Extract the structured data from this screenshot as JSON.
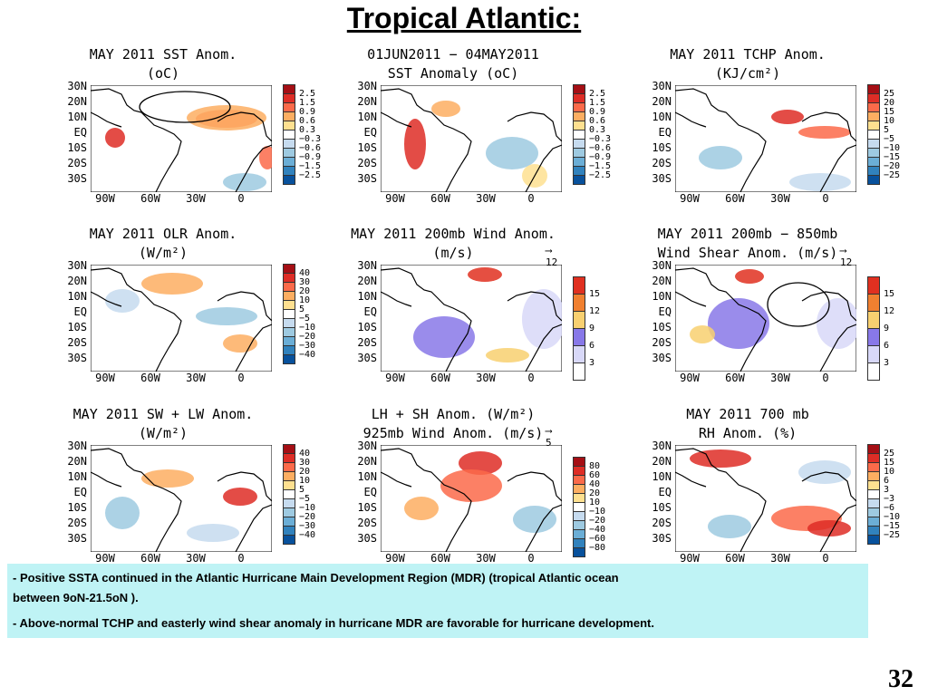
{
  "slide": {
    "title": "Tropical Atlantic:",
    "number": "32"
  },
  "axes": {
    "lat": [
      "30N",
      "20N",
      "10N",
      "EQ",
      "10S",
      "20S",
      "30S"
    ],
    "lon": [
      "90W",
      "60W",
      "30W",
      "0"
    ]
  },
  "panels": [
    {
      "title1": "MAY 2011 SST Anom.",
      "title2": "(oC)",
      "colorbar": [
        "2.5",
        "1.5",
        "0.9",
        "0.6",
        "0.3",
        "−0.3",
        "−0.6",
        "−0.9",
        "−1.5",
        "−2.5"
      ],
      "colors": [
        "#a50f15",
        "#de2d26",
        "#fb6a4a",
        "#fdae61",
        "#fee090",
        "#ffffff",
        "#c6dbef",
        "#9ecae1",
        "#6baed6",
        "#3182bd",
        "#08519c"
      ]
    },
    {
      "title1": "01JUN2011 − 04MAY2011",
      "title2": "SST Anomaly (oC)",
      "colorbar": [
        "2.5",
        "1.5",
        "0.9",
        "0.6",
        "0.3",
        "−0.3",
        "−0.6",
        "−0.9",
        "−1.5",
        "−2.5"
      ],
      "colors": [
        "#a50f15",
        "#de2d26",
        "#fb6a4a",
        "#fdae61",
        "#fee090",
        "#ffffff",
        "#c6dbef",
        "#9ecae1",
        "#6baed6",
        "#3182bd",
        "#08519c"
      ]
    },
    {
      "title1": "MAY 2011 TCHP Anom.",
      "title2": "(KJ/cm²)",
      "colorbar": [
        "25",
        "20",
        "15",
        "10",
        "5",
        "−5",
        "−10",
        "−15",
        "−20",
        "−25"
      ],
      "colors": [
        "#a50f15",
        "#de2d26",
        "#fb6a4a",
        "#fdae61",
        "#fee090",
        "#ffffff",
        "#c6dbef",
        "#9ecae1",
        "#6baed6",
        "#3182bd",
        "#08519c"
      ]
    },
    {
      "title1": "MAY 2011 OLR Anom.",
      "title2": "(W/m²)",
      "colorbar": [
        "40",
        "30",
        "20",
        "10",
        "5",
        "−5",
        "−10",
        "−20",
        "−30",
        "−40"
      ],
      "colors": [
        "#a50f15",
        "#de2d26",
        "#fb6a4a",
        "#fdae61",
        "#fee090",
        "#ffffff",
        "#c6dbef",
        "#9ecae1",
        "#6baed6",
        "#3182bd",
        "#08519c"
      ]
    },
    {
      "title1": "MAY 2011 200mb Wind Anom.",
      "title2": "(m/s)",
      "wind_key": "12",
      "colorbar": [
        "15",
        "12",
        "9",
        "6",
        "3"
      ],
      "colors": [
        "#e03020",
        "#f08030",
        "#f8d070",
        "#8878e8",
        "#d8d8f8",
        "#ffffff"
      ]
    },
    {
      "title1": "MAY 2011 200mb − 850mb",
      "title2": "Wind Shear Anom. (m/s)",
      "wind_key": "12",
      "colorbar": [
        "15",
        "12",
        "9",
        "6",
        "3"
      ],
      "colors": [
        "#e03020",
        "#f08030",
        "#f8d070",
        "#8878e8",
        "#d8d8f8",
        "#ffffff"
      ]
    },
    {
      "title1": "MAY 2011 SW + LW Anom.",
      "title2": "(W/m²)",
      "colorbar": [
        "40",
        "30",
        "20",
        "10",
        "5",
        "−5",
        "−10",
        "−20",
        "−30",
        "−40"
      ],
      "colors": [
        "#a50f15",
        "#de2d26",
        "#fb6a4a",
        "#fdae61",
        "#fee090",
        "#ffffff",
        "#c6dbef",
        "#9ecae1",
        "#6baed6",
        "#3182bd",
        "#08519c"
      ]
    },
    {
      "title1": "LH + SH Anom. (W/m²)",
      "title2": "925mb Wind Anom. (m/s)",
      "wind_key": "5",
      "colorbar": [
        "80",
        "60",
        "40",
        "20",
        "10",
        "−10",
        "−20",
        "−40",
        "−60",
        "−80"
      ],
      "colors": [
        "#a50f15",
        "#de2d26",
        "#fb6a4a",
        "#fdae61",
        "#fee090",
        "#ffffff",
        "#c6dbef",
        "#9ecae1",
        "#6baed6",
        "#3182bd",
        "#08519c"
      ]
    },
    {
      "title1": "MAY 2011 700 mb",
      "title2": "RH Anom. (%)",
      "colorbar": [
        "25",
        "15",
        "10",
        "6",
        "3",
        "−3",
        "−6",
        "−10",
        "−15",
        "−25"
      ],
      "colors": [
        "#a50f15",
        "#de2d26",
        "#fb6a4a",
        "#fdae61",
        "#fee090",
        "#ffffff",
        "#c6dbef",
        "#9ecae1",
        "#6baed6",
        "#3182bd",
        "#08519c"
      ]
    }
  ],
  "bullets": [
    "- Positive SSTA  continued in the Atlantic Hurricane Main Development  Region (MDR) (tropical Atlantic ocean",
    "between 9oN-21.5oN ).",
    "- Above-normal TCHP and easterly wind shear anomaly  in hurricane MDR are favorable for hurricane development."
  ]
}
